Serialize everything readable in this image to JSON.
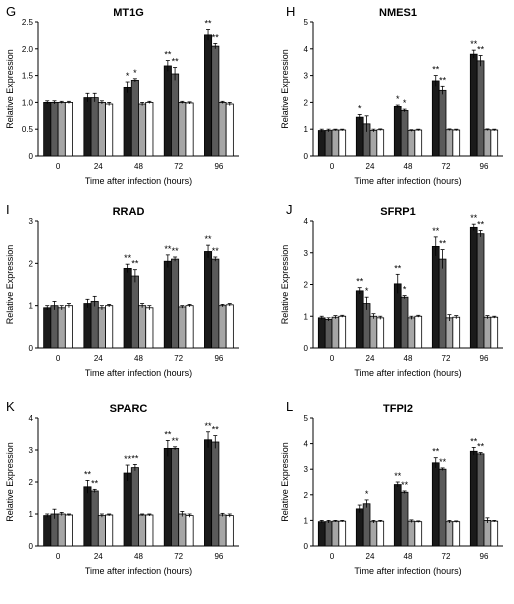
{
  "chart_data": [
    {
      "panel": "G",
      "title": "MT1G",
      "type": "bar",
      "xlabel": "Time after infection (hours)",
      "ylabel": "Relative Expression",
      "categories": [
        "0",
        "24",
        "48",
        "72",
        "96"
      ],
      "ylim": [
        0,
        2.5
      ],
      "yticks": [
        "0",
        "0.5",
        "1.0",
        "1.5",
        "2.0",
        "2.5"
      ],
      "ytick_values": [
        0,
        0.5,
        1.0,
        1.5,
        2.0,
        2.5
      ],
      "series": [
        {
          "values": [
            1.0,
            1.09,
            1.28,
            1.68,
            2.26
          ],
          "errors": [
            0.03,
            0.08,
            0.1,
            0.1,
            0.1
          ],
          "stars": [
            "",
            "",
            "*",
            "**",
            "**"
          ]
        },
        {
          "values": [
            1.0,
            1.09,
            1.41,
            1.53,
            2.05
          ],
          "errors": [
            0.03,
            0.08,
            0.03,
            0.12,
            0.05
          ],
          "stars": [
            "",
            "",
            "*",
            "**",
            "**"
          ]
        },
        {
          "values": [
            1.0,
            1.0,
            0.97,
            1.0,
            1.0
          ],
          "errors": [
            0.02,
            0.03,
            0.03,
            0.02,
            0.02
          ],
          "stars": [
            "",
            "",
            "",
            "",
            ""
          ]
        },
        {
          "values": [
            1.0,
            0.97,
            1.0,
            0.99,
            0.97
          ],
          "errors": [
            0.02,
            0.03,
            0.02,
            0.02,
            0.03
          ],
          "stars": [
            "",
            "",
            "",
            "",
            ""
          ]
        }
      ]
    },
    {
      "panel": "H",
      "title": "NMES1",
      "type": "bar",
      "xlabel": "Time after infection (hours)",
      "ylabel": "Relative Expression",
      "categories": [
        "0",
        "24",
        "48",
        "72",
        "96"
      ],
      "ylim": [
        0,
        5
      ],
      "yticks": [
        "0",
        "1",
        "2",
        "3",
        "4",
        "5"
      ],
      "ytick_values": [
        0,
        1,
        2,
        3,
        4,
        5
      ],
      "series": [
        {
          "values": [
            0.95,
            1.45,
            1.85,
            2.8,
            3.8
          ],
          "errors": [
            0.05,
            0.1,
            0.05,
            0.2,
            0.15
          ],
          "stars": [
            "",
            "*",
            "*",
            "**",
            "**"
          ]
        },
        {
          "values": [
            0.95,
            1.2,
            1.7,
            2.45,
            3.55
          ],
          "errors": [
            0.05,
            0.3,
            0.05,
            0.15,
            0.2
          ],
          "stars": [
            "",
            "",
            "*",
            "**",
            "**"
          ]
        },
        {
          "values": [
            0.97,
            0.95,
            0.95,
            0.98,
            0.98
          ],
          "errors": [
            0.03,
            0.05,
            0.03,
            0.03,
            0.03
          ],
          "stars": [
            "",
            "",
            "",
            "",
            ""
          ]
        },
        {
          "values": [
            0.97,
            0.98,
            0.97,
            0.97,
            0.97
          ],
          "errors": [
            0.03,
            0.03,
            0.03,
            0.03,
            0.03
          ],
          "stars": [
            "",
            "",
            "",
            "",
            ""
          ]
        }
      ]
    },
    {
      "panel": "I",
      "title": "RRAD",
      "type": "bar",
      "xlabel": "Time after infection (hours)",
      "ylabel": "Relative Expression",
      "categories": [
        "0",
        "24",
        "48",
        "72",
        "96"
      ],
      "ylim": [
        0,
        3
      ],
      "yticks": [
        "0",
        "1",
        "2",
        "3"
      ],
      "ytick_values": [
        0,
        1,
        2,
        3
      ],
      "series": [
        {
          "values": [
            0.95,
            1.05,
            1.88,
            2.05,
            2.28
          ],
          "errors": [
            0.05,
            0.1,
            0.1,
            0.15,
            0.15
          ],
          "stars": [
            "",
            "",
            "**",
            "**",
            "**"
          ]
        },
        {
          "values": [
            1.0,
            1.1,
            1.7,
            2.1,
            2.1
          ],
          "errors": [
            0.1,
            0.12,
            0.15,
            0.05,
            0.05
          ],
          "stars": [
            "",
            "",
            "**",
            "**",
            "**"
          ]
        },
        {
          "values": [
            0.95,
            0.95,
            1.0,
            0.97,
            1.0
          ],
          "errors": [
            0.05,
            0.05,
            0.05,
            0.03,
            0.03
          ],
          "stars": [
            "",
            "",
            "",
            "",
            ""
          ]
        },
        {
          "values": [
            1.0,
            1.0,
            0.95,
            1.0,
            1.02
          ],
          "errors": [
            0.05,
            0.03,
            0.05,
            0.03,
            0.03
          ],
          "stars": [
            "",
            "",
            "",
            "",
            ""
          ]
        }
      ]
    },
    {
      "panel": "J",
      "title": "SFRP1",
      "type": "bar",
      "xlabel": "Time after infection (hours)",
      "ylabel": "Relative Expression",
      "categories": [
        "0",
        "24",
        "48",
        "72",
        "96"
      ],
      "ylim": [
        0,
        4
      ],
      "yticks": [
        "0",
        "1",
        "2",
        "3",
        "4"
      ],
      "ytick_values": [
        0,
        1,
        2,
        3,
        4
      ],
      "series": [
        {
          "values": [
            0.95,
            1.8,
            2.02,
            3.2,
            3.8
          ],
          "errors": [
            0.05,
            0.1,
            0.3,
            0.3,
            0.1
          ],
          "stars": [
            "",
            "**",
            "**",
            "**",
            "**"
          ]
        },
        {
          "values": [
            0.9,
            1.4,
            1.6,
            2.8,
            3.6
          ],
          "errors": [
            0.05,
            0.2,
            0.05,
            0.3,
            0.1
          ],
          "stars": [
            "",
            "*",
            "*",
            "**",
            "**"
          ]
        },
        {
          "values": [
            0.97,
            1.0,
            0.95,
            0.95,
            0.97
          ],
          "errors": [
            0.05,
            0.08,
            0.05,
            0.1,
            0.05
          ],
          "stars": [
            "",
            "",
            "",
            "",
            ""
          ]
        },
        {
          "values": [
            1.0,
            0.95,
            1.0,
            0.97,
            0.97
          ],
          "errors": [
            0.03,
            0.05,
            0.03,
            0.05,
            0.03
          ],
          "stars": [
            "",
            "",
            "",
            "",
            ""
          ]
        }
      ]
    },
    {
      "panel": "K",
      "title": "SPARC",
      "type": "bar",
      "xlabel": "Time after infection (hours)",
      "ylabel": "Relative Expression",
      "categories": [
        "0",
        "24",
        "48",
        "72",
        "96"
      ],
      "ylim": [
        0,
        4
      ],
      "yticks": [
        "0",
        "1",
        "2",
        "3",
        "4"
      ],
      "ytick_values": [
        0,
        1,
        2,
        3,
        4
      ],
      "series": [
        {
          "values": [
            0.95,
            1.85,
            2.28,
            3.05,
            3.32
          ],
          "errors": [
            0.05,
            0.2,
            0.25,
            0.25,
            0.25
          ],
          "stars": [
            "",
            "**",
            "**",
            "**",
            "**"
          ]
        },
        {
          "values": [
            1.0,
            1.72,
            2.45,
            3.05,
            3.25
          ],
          "errors": [
            0.15,
            0.05,
            0.1,
            0.05,
            0.2
          ],
          "stars": [
            "",
            "**",
            "**",
            "**",
            "**"
          ]
        },
        {
          "values": [
            1.0,
            0.95,
            0.97,
            1.0,
            0.97
          ],
          "errors": [
            0.05,
            0.05,
            0.03,
            0.08,
            0.05
          ],
          "stars": [
            "",
            "",
            "",
            "",
            ""
          ]
        },
        {
          "values": [
            0.97,
            0.97,
            0.97,
            0.95,
            0.95
          ],
          "errors": [
            0.03,
            0.03,
            0.03,
            0.05,
            0.05
          ],
          "stars": [
            "",
            "",
            "",
            "",
            ""
          ]
        }
      ]
    },
    {
      "panel": "L",
      "title": "TFPI2",
      "type": "bar",
      "xlabel": "Time after infection (hours)",
      "ylabel": "Relative Expression",
      "categories": [
        "0",
        "24",
        "48",
        "72",
        "96"
      ],
      "ylim": [
        0,
        5
      ],
      "yticks": [
        "0",
        "1",
        "2",
        "3",
        "4",
        "5"
      ],
      "ytick_values": [
        0,
        1,
        2,
        3,
        4,
        5
      ],
      "series": [
        {
          "values": [
            0.95,
            1.45,
            2.4,
            3.25,
            3.7
          ],
          "errors": [
            0.05,
            0.15,
            0.1,
            0.2,
            0.15
          ],
          "stars": [
            "",
            "",
            "**",
            "**",
            "**"
          ]
        },
        {
          "values": [
            0.95,
            1.65,
            2.1,
            3.0,
            3.6
          ],
          "errors": [
            0.05,
            0.15,
            0.05,
            0.05,
            0.05
          ],
          "stars": [
            "",
            "*",
            "**",
            "**",
            "**"
          ]
        },
        {
          "values": [
            0.97,
            0.95,
            0.97,
            0.95,
            1.0
          ],
          "errors": [
            0.03,
            0.05,
            0.05,
            0.05,
            0.1
          ],
          "stars": [
            "",
            "",
            "",
            "",
            ""
          ]
        },
        {
          "values": [
            0.97,
            0.97,
            0.95,
            0.95,
            0.97
          ],
          "errors": [
            0.03,
            0.03,
            0.03,
            0.03,
            0.03
          ],
          "stars": [
            "",
            "",
            "",
            "",
            ""
          ]
        }
      ]
    }
  ],
  "series_colors": [
    "#1a1a1a",
    "#5a5a5a",
    "#a6a6a6",
    "#ffffff"
  ]
}
